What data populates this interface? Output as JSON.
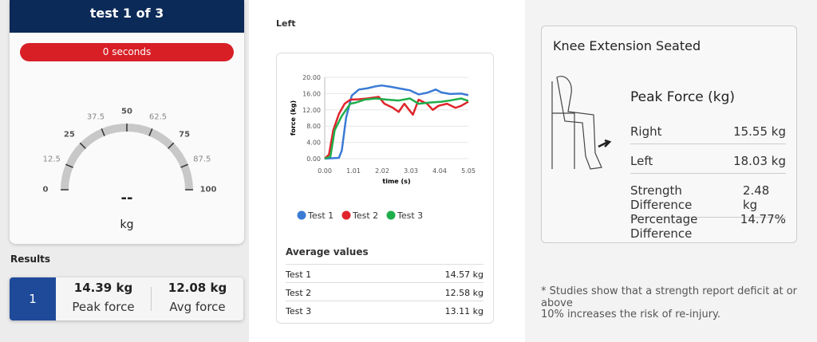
{
  "left_panel": {
    "header": "test 1 of 3",
    "timer": "0 seconds",
    "gauge": {
      "ticks": [
        "0",
        "12.5",
        "25",
        "37.5",
        "50",
        "62.5",
        "75",
        "87.5",
        "100"
      ],
      "value": "--",
      "unit": "kg"
    },
    "results_label": "Results",
    "result": {
      "index": "1",
      "peak_value": "14.39 kg",
      "peak_label": "Peak force",
      "avg_value": "12.08 kg",
      "avg_label": "Avg force"
    }
  },
  "middle_panel": {
    "side_label": "Left",
    "average_title": "Average values",
    "averages": [
      {
        "name": "Test 1",
        "value": "14.57 kg"
      },
      {
        "name": "Test 2",
        "value": "12.58 kg"
      },
      {
        "name": "Test 3",
        "value": "13.11 kg"
      }
    ]
  },
  "chart_data": {
    "type": "line",
    "xlabel": "time (s)",
    "ylabel": "force (kg)",
    "xlim": [
      0,
      5.05
    ],
    "ylim": [
      0,
      20
    ],
    "xticks": [
      "0.00",
      "1.01",
      "2.02",
      "3.03",
      "4.04",
      "5.05"
    ],
    "yticks": [
      "0.00",
      "4.00",
      "8.00",
      "12.00",
      "16.00",
      "20.00"
    ],
    "grid": true,
    "legend": "bottom",
    "series": [
      {
        "name": "Test 1",
        "color": "#3a7bd5",
        "x": [
          0,
          0.5,
          0.6,
          0.75,
          0.95,
          1.2,
          1.5,
          1.8,
          2.0,
          2.3,
          2.6,
          3.0,
          3.3,
          3.6,
          3.9,
          4.1,
          4.4,
          4.8,
          5.05
        ],
        "y": [
          0,
          0.2,
          2,
          10,
          15.5,
          17,
          17.3,
          17.8,
          18,
          17.7,
          17.3,
          16.8,
          15.8,
          16.2,
          17,
          16.3,
          15.9,
          16,
          15.6
        ]
      },
      {
        "name": "Test 2",
        "color": "#e0242b",
        "x": [
          0,
          0.15,
          0.3,
          0.5,
          0.7,
          0.9,
          1.2,
          1.5,
          1.7,
          1.9,
          2.1,
          2.4,
          2.6,
          2.8,
          3.1,
          3.3,
          3.6,
          3.8,
          4.0,
          4.3,
          4.6,
          4.8,
          5.05
        ],
        "y": [
          0,
          1,
          7,
          11,
          13.5,
          14.5,
          14.6,
          14.8,
          15,
          15.2,
          13.5,
          12.5,
          11.5,
          13.5,
          10.8,
          14.5,
          13.5,
          12,
          13,
          13.5,
          12.5,
          13,
          14
        ]
      },
      {
        "name": "Test 3",
        "color": "#1fae4b",
        "x": [
          0,
          0.2,
          0.35,
          0.6,
          0.9,
          1.1,
          1.4,
          1.8,
          2.2,
          2.6,
          3.0,
          3.3,
          3.7,
          4.1,
          4.4,
          4.8,
          5.05
        ],
        "y": [
          0,
          0.5,
          7,
          10.5,
          13.5,
          13.8,
          14.5,
          14.8,
          14.5,
          14.3,
          14.8,
          13.5,
          13.8,
          14,
          14.3,
          14.8,
          14.2
        ]
      }
    ]
  },
  "right_panel": {
    "title": "Knee Extension Seated",
    "subtitle": "Peak Force (kg)",
    "rows": [
      {
        "label": "Right",
        "value": "15.55 kg"
      },
      {
        "label": "Left",
        "value": "18.03 kg"
      },
      {
        "label": "Strength Difference",
        "value": "2.48 kg"
      },
      {
        "label": "Percentage Difference",
        "value": "14.77%"
      }
    ],
    "footnote_1": "* Studies show that a strength report deficit at or above",
    "footnote_2": "10% increases the risk of re-injury."
  }
}
